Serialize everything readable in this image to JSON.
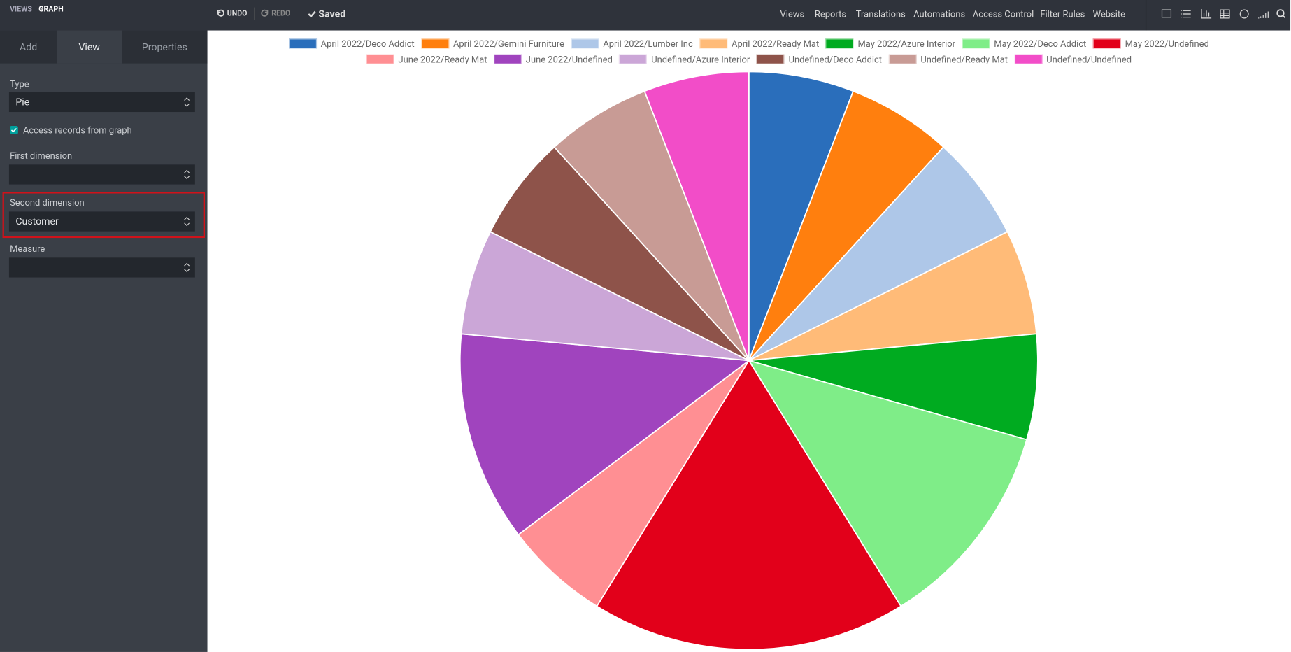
{
  "topbar": {
    "views": "VIEWS",
    "current": "GRAPH",
    "undo": "UNDO",
    "redo": "REDO",
    "saved": "Saved",
    "menu": [
      "Views",
      "Reports",
      "Translations",
      "Automations",
      "Access Control",
      "Filter Rules",
      "Website"
    ]
  },
  "sidebar": {
    "tabs": [
      "Add",
      "View",
      "Properties"
    ],
    "type_label": "Type",
    "type_value": "Pie",
    "access_records": "Access records from graph",
    "first_dimension": "First dimension",
    "second_dimension": "Second dimension",
    "second_value": "Customer",
    "measure": "Measure"
  },
  "chart_data": {
    "type": "pie",
    "series": [
      {
        "name": "April 2022/Deco Addict",
        "color": "#2a6ebb",
        "values": [
          1
        ]
      },
      {
        "name": "April 2022/Gemini Furniture",
        "color": "#ff7f0e",
        "values": [
          1
        ]
      },
      {
        "name": "April 2022/Lumber Inc",
        "color": "#aec7e8",
        "values": [
          1
        ]
      },
      {
        "name": "April 2022/Ready Mat",
        "color": "#ffbb78",
        "values": [
          1
        ]
      },
      {
        "name": "May 2022/Azure Interior",
        "color": "#00ab20",
        "values": [
          1
        ]
      },
      {
        "name": "May 2022/Deco Addict",
        "color": "#7fed88",
        "values": [
          2
        ]
      },
      {
        "name": "May 2022/Undefined",
        "color": "#e2001a",
        "values": [
          3
        ]
      },
      {
        "name": "June 2022/Ready Mat",
        "color": "#ff8f93",
        "values": [
          1
        ]
      },
      {
        "name": "June 2022/Undefined",
        "color": "#a044be",
        "values": [
          2
        ]
      },
      {
        "name": "Undefined/Azure Interior",
        "color": "#cba6d7",
        "values": [
          1
        ]
      },
      {
        "name": "Undefined/Deco Addict",
        "color": "#8e534a",
        "values": [
          1
        ]
      },
      {
        "name": "Undefined/Ready Mat",
        "color": "#c89b95",
        "values": [
          1
        ]
      },
      {
        "name": "Undefined/Undefined",
        "color": "#f24dc8",
        "values": [
          1
        ]
      }
    ]
  }
}
